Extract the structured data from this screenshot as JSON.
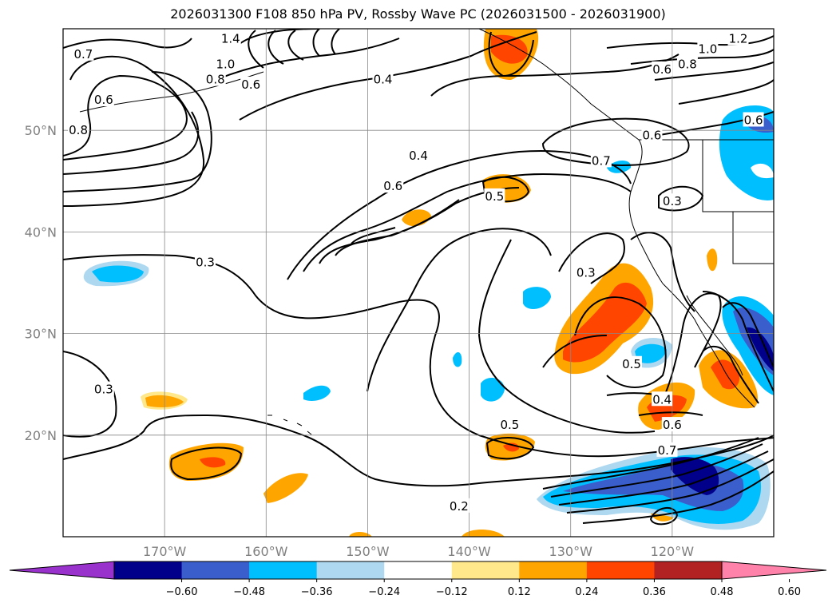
{
  "chart_data": {
    "type": "contour",
    "title": "2026031300 F108 850 hPa PV, Rossby Wave PC (2026031500 - 2026031900)",
    "lon_labels": [
      "170°W",
      "160°W",
      "150°W",
      "140°W",
      "130°W",
      "120°W"
    ],
    "lon_values": [
      -170,
      -160,
      -150,
      -140,
      -130,
      -120
    ],
    "lat_labels": [
      "50°N",
      "40°N",
      "30°N",
      "20°N"
    ],
    "lat_values": [
      50,
      40,
      30,
      20
    ],
    "lon_range": [
      -180,
      -110
    ],
    "lat_range": [
      10,
      60
    ],
    "colorbar": {
      "ticks": [
        "−0.60",
        "−0.48",
        "−0.36",
        "−0.24",
        "−0.12",
        "0.12",
        "0.24",
        "0.36",
        "0.48",
        "0.60"
      ],
      "colors": [
        "#9932cc",
        "#00008b",
        "#3a5fcd",
        "#00bfff",
        "#add8f0",
        "#ffffff",
        "#ffe88c",
        "#ffa500",
        "#ff4500",
        "#b22222",
        "#ff82ab"
      ],
      "extend": "both"
    },
    "contour_labels": [
      {
        "text": "0.7",
        "lon": -178.0,
        "lat": 57.5
      },
      {
        "text": "0.6",
        "lon": -176.0,
        "lat": 53.0
      },
      {
        "text": "0.8",
        "lon": -178.5,
        "lat": 50.0
      },
      {
        "text": "1.4",
        "lon": -163.5,
        "lat": 59.0
      },
      {
        "text": "1.0",
        "lon": -164.0,
        "lat": 56.5
      },
      {
        "text": "0.8",
        "lon": -165.0,
        "lat": 55.0
      },
      {
        "text": "0.6",
        "lon": -161.5,
        "lat": 54.5
      },
      {
        "text": "0.4",
        "lon": -148.5,
        "lat": 55.0
      },
      {
        "text": "1.0",
        "lon": -116.5,
        "lat": 58.0
      },
      {
        "text": "1.2",
        "lon": -113.5,
        "lat": 59.0
      },
      {
        "text": "0.8",
        "lon": -118.5,
        "lat": 56.5
      },
      {
        "text": "0.6",
        "lon": -121.0,
        "lat": 56.0
      },
      {
        "text": "0.6",
        "lon": -112.0,
        "lat": 51.0
      },
      {
        "text": "0.6",
        "lon": -122.0,
        "lat": 49.5
      },
      {
        "text": "0.7",
        "lon": -127.0,
        "lat": 47.0
      },
      {
        "text": "0.4",
        "lon": -145.0,
        "lat": 47.5
      },
      {
        "text": "0.6",
        "lon": -147.5,
        "lat": 44.5
      },
      {
        "text": "0.5",
        "lon": -137.5,
        "lat": 43.5
      },
      {
        "text": "0.3",
        "lon": -120.0,
        "lat": 43.0
      },
      {
        "text": "0.3",
        "lon": -166.0,
        "lat": 37.0
      },
      {
        "text": "0.3",
        "lon": -128.5,
        "lat": 36.0
      },
      {
        "text": "0.5",
        "lon": -124.0,
        "lat": 27.0
      },
      {
        "text": "0.3",
        "lon": -176.0,
        "lat": 24.5
      },
      {
        "text": "0.4",
        "lon": -121.0,
        "lat": 23.5
      },
      {
        "text": "0.5",
        "lon": -136.0,
        "lat": 21.0
      },
      {
        "text": "0.6",
        "lon": -120.0,
        "lat": 21.0
      },
      {
        "text": "0.7",
        "lon": -120.5,
        "lat": 18.5
      },
      {
        "text": "0.2",
        "lon": -141.0,
        "lat": 13.0
      }
    ]
  }
}
